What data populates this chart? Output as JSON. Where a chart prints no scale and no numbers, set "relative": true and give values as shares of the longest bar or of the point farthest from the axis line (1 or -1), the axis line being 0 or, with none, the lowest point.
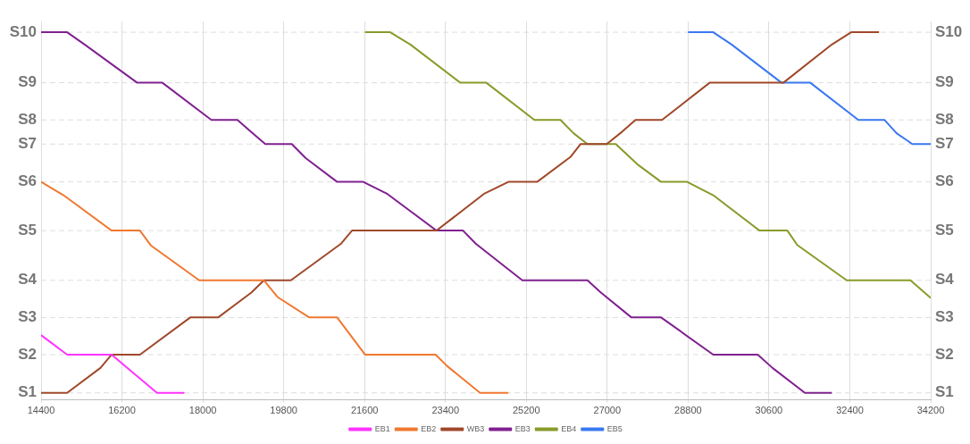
{
  "chart_data": {
    "type": "line",
    "relative": true,
    "xlim": [
      14400,
      34200
    ],
    "xticks": [
      14400,
      16200,
      18000,
      19800,
      21600,
      23400,
      25200,
      27000,
      28800,
      30600,
      32400,
      34200
    ],
    "grid": "x",
    "legend": "bottom",
    "marker": "none",
    "line_style": "solid",
    "ref_lines": [
      {
        "axis": "y",
        "value": 0,
        "label": "S1",
        "color": "#dddddd",
        "line_style": "dashed"
      },
      {
        "axis": "y",
        "value": 0.106,
        "label": "S2",
        "color": "#dddddd",
        "line_style": "dashed"
      },
      {
        "axis": "y",
        "value": 0.209,
        "label": "S3",
        "color": "#dddddd",
        "line_style": "dashed"
      },
      {
        "axis": "y",
        "value": 0.312,
        "label": "S4",
        "color": "#dddddd",
        "line_style": "dashed"
      },
      {
        "axis": "y",
        "value": 0.45,
        "label": "S5",
        "color": "#dddddd",
        "line_style": "dashed"
      },
      {
        "axis": "y",
        "value": 0.585,
        "label": "S6",
        "color": "#dddddd",
        "line_style": "dashed"
      },
      {
        "axis": "y",
        "value": 0.69,
        "label": "S7",
        "color": "#dddddd",
        "line_style": "dashed"
      },
      {
        "axis": "y",
        "value": 0.757,
        "label": "S8",
        "color": "#dddddd",
        "line_style": "dashed"
      },
      {
        "axis": "y",
        "value": 0.86,
        "label": "S9",
        "color": "#dddddd",
        "line_style": "dashed"
      },
      {
        "axis": "y",
        "value": 1,
        "label": "S10",
        "color": "#dddddd",
        "line_style": "dashed"
      }
    ],
    "series": [
      {
        "name": "EB1",
        "color": "#ff33ff",
        "x": [
          14400,
          14980,
          15970,
          16300,
          16980,
          17590
        ],
        "values": [
          0.16,
          0.106,
          0.106,
          0.071,
          0,
          0
        ]
      },
      {
        "name": "EB2",
        "color": "#f07830",
        "x": [
          14400,
          14900,
          15970,
          16600,
          16850,
          17920,
          19360,
          19670,
          20370,
          20990,
          21610,
          23180,
          23440,
          24170,
          24800
        ],
        "values": [
          0.585,
          0.548,
          0.45,
          0.45,
          0.408,
          0.312,
          0.312,
          0.265,
          0.209,
          0.209,
          0.106,
          0.106,
          0.074,
          0,
          0
        ]
      },
      {
        "name": "WB3",
        "color": "#a0482a",
        "x": [
          14400,
          14980,
          15720,
          15970,
          16600,
          17720,
          18340,
          19080,
          19360,
          19960,
          21070,
          21320,
          23200,
          24270,
          24800,
          25440,
          26180,
          26410,
          26990,
          27340,
          27630,
          28220,
          29280,
          30920,
          32000,
          32430,
          33050
        ],
        "values": [
          0,
          0,
          0.069,
          0.106,
          0.106,
          0.209,
          0.209,
          0.278,
          0.312,
          0.312,
          0.413,
          0.45,
          0.45,
          0.553,
          0.585,
          0.585,
          0.654,
          0.69,
          0.69,
          0.725,
          0.757,
          0.757,
          0.86,
          0.86,
          0.966,
          1,
          1
        ]
      },
      {
        "name": "EB3",
        "color": "#802090",
        "x": [
          14400,
          14980,
          15370,
          16540,
          17100,
          18190,
          18770,
          19060,
          19390,
          19980,
          20290,
          20990,
          21570,
          22090,
          23200,
          23790,
          24080,
          25110,
          26560,
          26860,
          27540,
          28200,
          29360,
          30350,
          30680,
          31400,
          32000
        ],
        "values": [
          1,
          1,
          0.966,
          0.86,
          0.86,
          0.757,
          0.757,
          0.725,
          0.69,
          0.69,
          0.651,
          0.585,
          0.585,
          0.553,
          0.45,
          0.45,
          0.413,
          0.312,
          0.312,
          0.278,
          0.209,
          0.209,
          0.106,
          0.106,
          0.069,
          0,
          0
        ]
      },
      {
        "name": "EB4",
        "color": "#8a9a2a",
        "x": [
          21610,
          22170,
          22620,
          23730,
          24310,
          25380,
          25960,
          26250,
          26560,
          27190,
          27670,
          28200,
          28780,
          29360,
          30390,
          31010,
          31230,
          32330,
          33750,
          34200
        ],
        "values": [
          1,
          1,
          0.966,
          0.86,
          0.86,
          0.757,
          0.757,
          0.72,
          0.69,
          0.69,
          0.634,
          0.585,
          0.585,
          0.548,
          0.45,
          0.45,
          0.41,
          0.312,
          0.312,
          0.263
        ]
      },
      {
        "name": "EB5",
        "color": "#3a78f0",
        "x": [
          28800,
          29360,
          29770,
          30880,
          31520,
          32590,
          33170,
          33440,
          33790,
          34200
        ],
        "values": [
          1,
          1,
          0.966,
          0.86,
          0.86,
          0.757,
          0.757,
          0.72,
          0.69,
          0.69
        ]
      }
    ]
  }
}
